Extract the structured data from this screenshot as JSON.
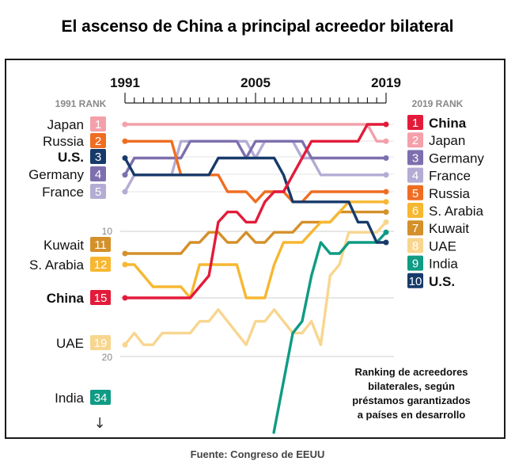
{
  "title": "El ascenso de China a principal acreedor bilateral",
  "source": "Fuente: Congreso de EEUU",
  "chart_data": {
    "type": "line",
    "subtype": "bump",
    "x_ticks": [
      "1991",
      "2005",
      "2019"
    ],
    "x": [
      1991,
      1992,
      1993,
      1994,
      1995,
      1996,
      1997,
      1998,
      1999,
      2000,
      2001,
      2002,
      2003,
      2004,
      2005,
      2006,
      2007,
      2008,
      2009,
      2010,
      2011,
      2012,
      2013,
      2014,
      2015,
      2016,
      2017,
      2018,
      2019
    ],
    "left_header": "1991 RANK",
    "right_header": "2019 RANK",
    "rank_axis_labels": [
      "10",
      "20"
    ],
    "y_inverted": true,
    "annotation": [
      "Ranking de acreedores",
      "bilaterales, según",
      "préstamos garantizados",
      "a países en desarrollo"
    ],
    "series": [
      {
        "name": "China",
        "start_rank": "15",
        "end_rank": "1",
        "bold": true,
        "color": "#e31b3a",
        "values": [
          15,
          15,
          15,
          15,
          15,
          15,
          15,
          15,
          14,
          13,
          8,
          7,
          7,
          8,
          8,
          6,
          5,
          5,
          4,
          3,
          2,
          2,
          2,
          2,
          2,
          2,
          1,
          1,
          1
        ]
      },
      {
        "name": "Japan",
        "start_rank": "1",
        "end_rank": "2",
        "color": "#f4a0aa",
        "values": [
          1,
          1,
          1,
          1,
          1,
          1,
          1,
          1,
          1,
          1,
          1,
          1,
          1,
          1,
          1,
          1,
          1,
          1,
          1,
          1,
          1,
          1,
          1,
          1,
          1,
          1,
          1,
          2,
          2
        ]
      },
      {
        "name": "Germany",
        "start_rank": "4",
        "end_rank": "3",
        "color": "#7d6fae",
        "values": [
          4,
          3,
          3,
          3,
          3,
          3,
          3,
          2,
          2,
          2,
          2,
          2,
          2,
          3,
          2,
          2,
          2,
          2,
          2,
          2,
          3,
          3,
          3,
          3,
          3,
          3,
          3,
          3,
          3
        ]
      },
      {
        "name": "France",
        "start_rank": "5",
        "end_rank": "4",
        "color": "#b4acd4",
        "values": [
          5,
          4,
          4,
          4,
          4,
          4,
          2,
          2,
          2,
          2,
          2,
          2,
          2,
          2,
          3,
          2,
          2,
          2,
          2,
          3,
          3,
          4,
          4,
          4,
          4,
          4,
          4,
          4,
          4
        ]
      },
      {
        "name": "Russia",
        "start_rank": "2",
        "end_rank": "5",
        "color": "#ef6d22",
        "values": [
          2,
          2,
          2,
          2,
          2,
          2,
          4,
          4,
          4,
          4,
          4,
          5,
          5,
          5,
          6,
          5,
          5,
          5,
          6,
          6,
          5,
          5,
          5,
          5,
          5,
          5,
          5,
          5,
          5
        ]
      },
      {
        "name": "S. Arabia",
        "start_rank": "12",
        "end_rank": "6",
        "color": "#f7b731",
        "values": [
          12,
          12,
          13,
          14,
          14,
          14,
          14,
          15,
          12,
          12,
          12,
          12,
          12,
          15,
          15,
          15,
          12,
          10,
          10,
          10,
          9,
          8,
          8,
          7,
          6,
          6,
          6,
          6,
          6
        ]
      },
      {
        "name": "Kuwait",
        "start_rank": "11",
        "end_rank": "7",
        "color": "#d4902a",
        "values": [
          11,
          11,
          11,
          11,
          11,
          11,
          11,
          10,
          10,
          9,
          9,
          10,
          10,
          9,
          10,
          10,
          9,
          9,
          9,
          8,
          8,
          8,
          8,
          7,
          7,
          7,
          7,
          7,
          7
        ]
      },
      {
        "name": "UAE",
        "start_rank": "19",
        "end_rank": "8",
        "color": "#f8d68f",
        "values": [
          19,
          18,
          19,
          19,
          18,
          18,
          18,
          18,
          17,
          17,
          16,
          17,
          18,
          19,
          17,
          17,
          16,
          17,
          18,
          18,
          17,
          19,
          13,
          12,
          9,
          9,
          9,
          9,
          8
        ]
      },
      {
        "name": "India",
        "start_rank": "34",
        "end_rank": "9",
        "color": "#0f9b84",
        "values": [
          null,
          null,
          null,
          null,
          null,
          null,
          null,
          null,
          null,
          null,
          null,
          null,
          null,
          null,
          null,
          null,
          null,
          null,
          18,
          17,
          13,
          10,
          11,
          11,
          10,
          10,
          10,
          10,
          9
        ]
      },
      {
        "name": "U.S.",
        "start_rank": "3",
        "end_rank": "10",
        "bold": true,
        "color": "#173a6a",
        "values": [
          3,
          4,
          4,
          4,
          4,
          4,
          4,
          4,
          4,
          4,
          3,
          3,
          3,
          3,
          3,
          3,
          3,
          4,
          6,
          6,
          6,
          6,
          6,
          6,
          6,
          8,
          8,
          10,
          10
        ]
      }
    ]
  }
}
